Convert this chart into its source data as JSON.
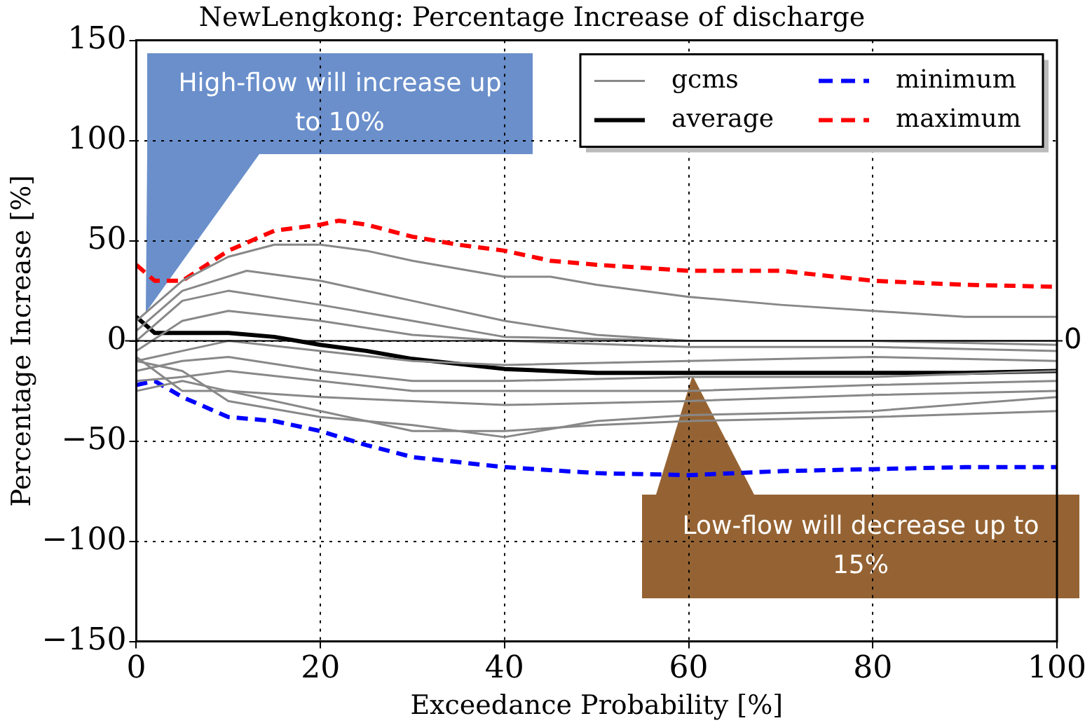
{
  "chart_data": {
    "type": "line",
    "title": "NewLengkong: Percentage Increase of discharge",
    "xlabel": "Exceedance Probability [%]",
    "ylabel": "Percentage Increase [%]",
    "xlim": [
      0,
      100
    ],
    "xticks": [
      0,
      20,
      40,
      60,
      80,
      100
    ],
    "ylim": [
      -150,
      150
    ],
    "yticks": [
      -150,
      -100,
      -50,
      0,
      50,
      100,
      150
    ],
    "grid": true,
    "legend": "top right",
    "marker": "none",
    "ref_lines": [
      {
        "axis": "y",
        "value": 0,
        "label": "0",
        "color": "#000000"
      }
    ],
    "annotations": [
      "High-flow will increase up to 10%",
      "Low-flow will decrease up to 15%"
    ],
    "series": [
      {
        "name": "gcms",
        "color": "#888888",
        "x": [
          0,
          5,
          10,
          15,
          20,
          25,
          30,
          40,
          45,
          50,
          60,
          70,
          80,
          90,
          100
        ],
        "values": [
          10,
          30,
          42,
          48,
          48,
          45,
          40,
          32,
          32,
          28,
          22,
          18,
          15,
          12,
          12
        ]
      },
      {
        "color": "#888888",
        "x": [
          0,
          5,
          12,
          20,
          30,
          40,
          50,
          60,
          80,
          100
        ],
        "values": [
          5,
          25,
          35,
          30,
          20,
          10,
          3,
          0,
          0,
          -2
        ]
      },
      {
        "color": "#888888",
        "x": [
          0,
          5,
          10,
          20,
          30,
          40,
          60,
          100
        ],
        "values": [
          0,
          20,
          25,
          18,
          10,
          2,
          0,
          0
        ]
      },
      {
        "color": "#888888",
        "x": [
          0,
          5,
          10,
          20,
          30,
          40,
          60,
          80,
          100
        ],
        "values": [
          -5,
          10,
          15,
          10,
          3,
          0,
          -3,
          -3,
          -5
        ]
      },
      {
        "color": "#888888",
        "x": [
          0,
          5,
          10,
          20,
          30,
          40,
          60,
          80,
          100
        ],
        "values": [
          -10,
          -5,
          0,
          -5,
          -10,
          -12,
          -10,
          -8,
          -10
        ]
      },
      {
        "color": "#888888",
        "x": [
          0,
          5,
          10,
          20,
          30,
          40,
          60,
          80,
          100
        ],
        "values": [
          -15,
          -10,
          -8,
          -15,
          -20,
          -20,
          -18,
          -18,
          -15
        ]
      },
      {
        "color": "#888888",
        "x": [
          0,
          5,
          10,
          20,
          30,
          40,
          60,
          80,
          100
        ],
        "values": [
          -20,
          -18,
          -15,
          -20,
          -25,
          -25,
          -25,
          -22,
          -20
        ]
      },
      {
        "color": "#888888",
        "x": [
          0,
          5,
          10,
          20,
          30,
          40,
          50,
          60,
          80,
          100
        ],
        "values": [
          -25,
          -20,
          -25,
          -35,
          -45,
          -45,
          -42,
          -40,
          -38,
          -35
        ]
      },
      {
        "color": "#888888",
        "x": [
          0,
          5,
          10,
          20,
          30,
          40,
          50,
          60,
          80,
          100
        ],
        "values": [
          -10,
          -15,
          -30,
          -38,
          -42,
          -48,
          -40,
          -37,
          -35,
          -28
        ]
      },
      {
        "color": "#888888",
        "x": [
          0,
          5,
          10,
          20,
          30,
          40,
          60,
          80,
          100
        ],
        "values": [
          -8,
          -25,
          -25,
          -28,
          -30,
          -32,
          -30,
          -27,
          -25
        ]
      },
      {
        "name": "average",
        "color": "#000000",
        "x": [
          0,
          2,
          5,
          10,
          15,
          20,
          25,
          30,
          40,
          50,
          60,
          70,
          80,
          90,
          100
        ],
        "values": [
          12,
          4,
          4,
          4,
          2,
          -2,
          -5,
          -9,
          -14,
          -16,
          -16,
          -16,
          -16,
          -16,
          -15
        ]
      },
      {
        "name": "minimum",
        "color": "#0000ff",
        "line_style": "dashed",
        "x": [
          0,
          2,
          5,
          10,
          15,
          20,
          25,
          30,
          40,
          50,
          60,
          70,
          80,
          90,
          100
        ],
        "values": [
          -22,
          -20,
          -28,
          -38,
          -40,
          -45,
          -52,
          -58,
          -63,
          -66,
          -67,
          -65,
          -64,
          -63,
          -63
        ]
      },
      {
        "name": "maximum",
        "color": "#ff0000",
        "line_style": "dashed",
        "x": [
          0,
          2,
          5,
          10,
          15,
          20,
          22,
          25,
          30,
          35,
          40,
          45,
          50,
          60,
          70,
          80,
          90,
          100
        ],
        "values": [
          38,
          30,
          30,
          45,
          55,
          58,
          60,
          58,
          52,
          48,
          45,
          40,
          38,
          35,
          35,
          30,
          28,
          27
        ]
      }
    ]
  }
}
